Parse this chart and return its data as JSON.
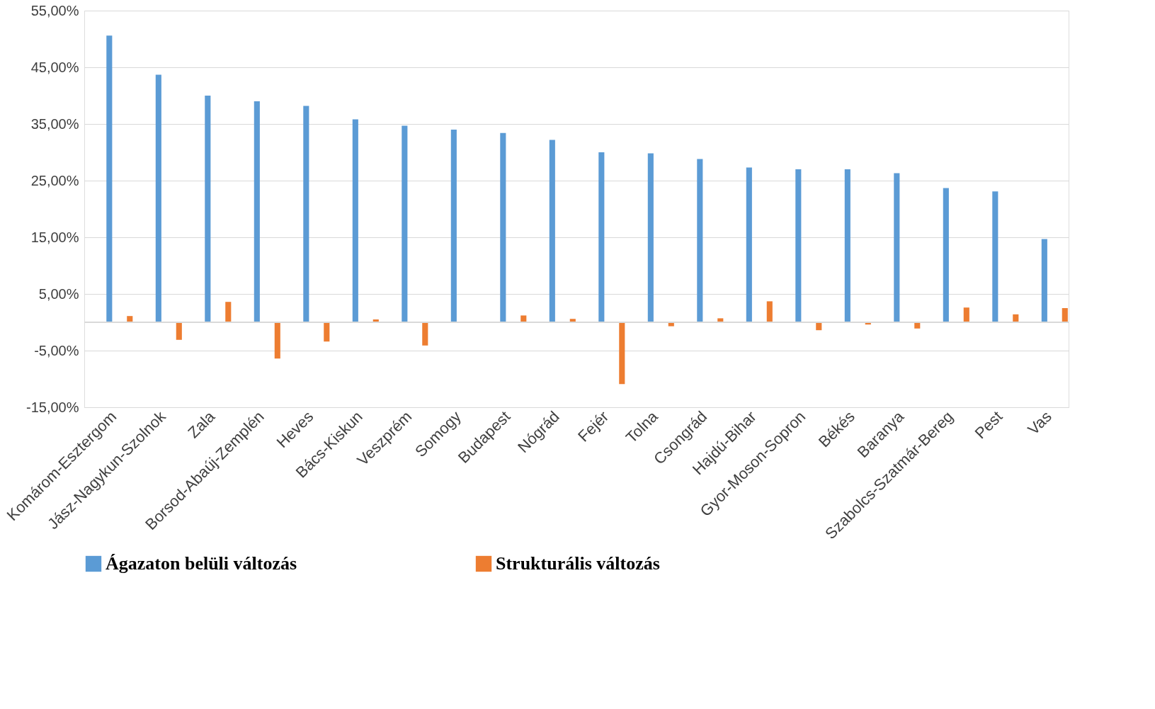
{
  "chart_data": {
    "type": "bar",
    "categories": [
      "Komárom-Esztergom",
      "Jász-Nagykun-Szolnok",
      "Zala",
      "Borsod-Abaúj-Zemplén",
      "Heves",
      "Bács-Kiskun",
      "Veszprém",
      "Somogy",
      "Budapest",
      "Nógrád",
      "Fejér",
      "Tolna",
      "Csongrád",
      "Hajdú-Bihar",
      "Gyor-Moson-Sopron",
      "Békés",
      "Baranya",
      "Szabolcs-Szatmár-Bereg",
      "Pest",
      "Vas"
    ],
    "series": [
      {
        "name": "Ágazaton belüli változás",
        "color": "#5b9bd5",
        "values": [
          50.6,
          43.7,
          40.0,
          39.0,
          38.2,
          35.8,
          34.7,
          34.0,
          33.4,
          32.2,
          30.0,
          29.8,
          28.8,
          27.3,
          27.0,
          27.0,
          26.3,
          23.7,
          23.1,
          14.7
        ]
      },
      {
        "name": "Strukturális változás",
        "color": "#ed7d31",
        "values": [
          1.1,
          -3.1,
          3.6,
          -6.4,
          -3.4,
          0.5,
          -4.1,
          0.0,
          1.2,
          0.6,
          -10.9,
          -0.7,
          0.7,
          3.7,
          -1.4,
          -0.4,
          -1.1,
          2.6,
          1.4,
          2.5
        ]
      }
    ],
    "ylim": [
      -15,
      55
    ],
    "yticks": [
      {
        "value": -15,
        "label": "-15,00%"
      },
      {
        "value": -5,
        "label": "-5,00%"
      },
      {
        "value": 5,
        "label": "5,00%"
      },
      {
        "value": 15,
        "label": "15,00%"
      },
      {
        "value": 25,
        "label": "25,00%"
      },
      {
        "value": 35,
        "label": "35,00%"
      },
      {
        "value": 45,
        "label": "45,00%"
      },
      {
        "value": 55,
        "label": "55,00%"
      }
    ],
    "ref_lines": [
      {
        "axis": "y",
        "value": 0,
        "color": "#d9d9d9"
      }
    ],
    "grid": "y",
    "legend": "bottom"
  }
}
